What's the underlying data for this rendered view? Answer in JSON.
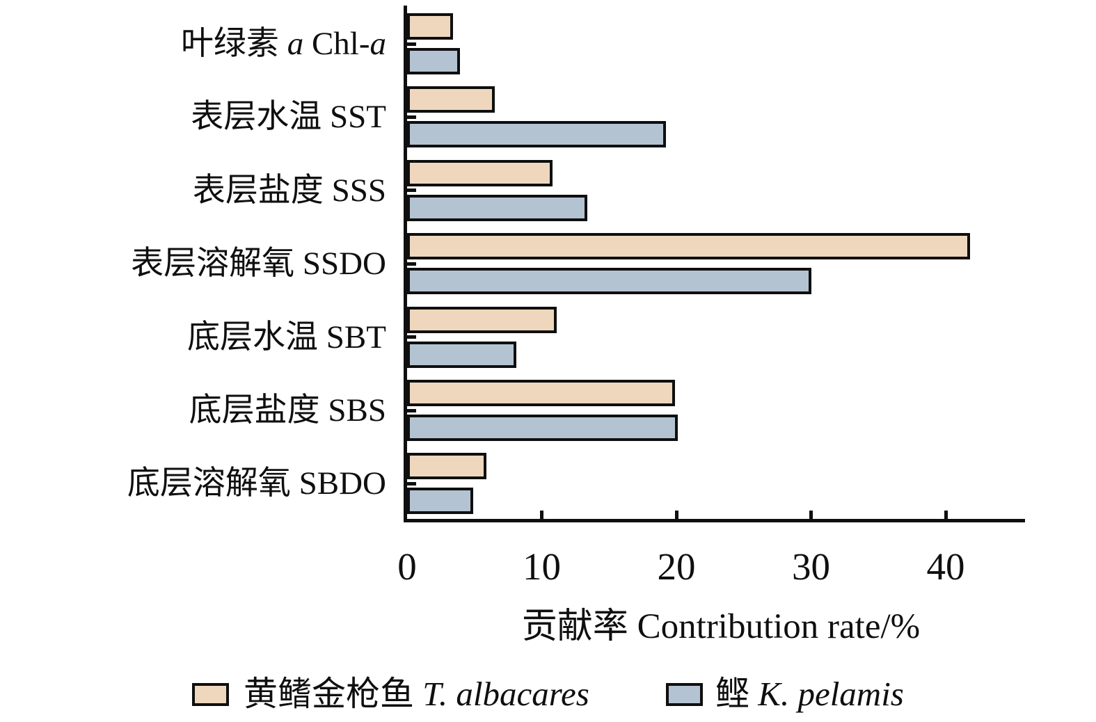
{
  "chart_data": {
    "type": "bar",
    "orientation": "horizontal",
    "title": "",
    "xlabel": "贡献率 Contribution rate/%",
    "ylabel": "",
    "categories": [
      "叶绿素 a Chl-a",
      "表层水温 SST",
      "表层盐度 SSS",
      "表层溶解氧 SSDO",
      "底层水温 SBT",
      "底层盐度 SBS",
      "底层溶解氧 SBDO"
    ],
    "category_segments": [
      [
        {
          "t": "叶绿素 "
        },
        {
          "t": "a",
          "i": true
        },
        {
          "t": " Chl-"
        },
        {
          "t": "a",
          "i": true
        }
      ],
      [
        {
          "t": "表层水温 SST"
        }
      ],
      [
        {
          "t": "表层盐度 SSS"
        }
      ],
      [
        {
          "t": "表层溶解氧 SSDO"
        }
      ],
      [
        {
          "t": "底层水温 SBT"
        }
      ],
      [
        {
          "t": "底层盐度 SBS"
        }
      ],
      [
        {
          "t": "底层溶解氧 SBDO"
        }
      ]
    ],
    "series": [
      {
        "name": "黄鳍金枪鱼 T. albacares",
        "name_segments": [
          {
            "t": "黄鳍金枪鱼 "
          },
          {
            "t": "T. albacares",
            "i": true
          }
        ],
        "color": "#EFD7BD",
        "values": [
          3.4,
          6.5,
          10.8,
          41.8,
          11.1,
          19.9,
          5.9
        ]
      },
      {
        "name": "鲣 K. pelamis",
        "name_segments": [
          {
            "t": "鲣 "
          },
          {
            "t": "K. pelamis",
            "i": true
          }
        ],
        "color": "#B4C3D2",
        "values": [
          3.9,
          19.2,
          13.4,
          30.0,
          8.1,
          20.1,
          4.9
        ]
      }
    ],
    "xticks": [
      0,
      10,
      20,
      30,
      40
    ],
    "xtick_labels": [
      "0",
      "10",
      "20",
      "30",
      "40"
    ],
    "xlim": [
      0,
      45.9
    ],
    "grid": false,
    "legend_position": "bottom",
    "bar_border_color": "#0f0f0f",
    "axis_color": "#0f0f0f"
  }
}
